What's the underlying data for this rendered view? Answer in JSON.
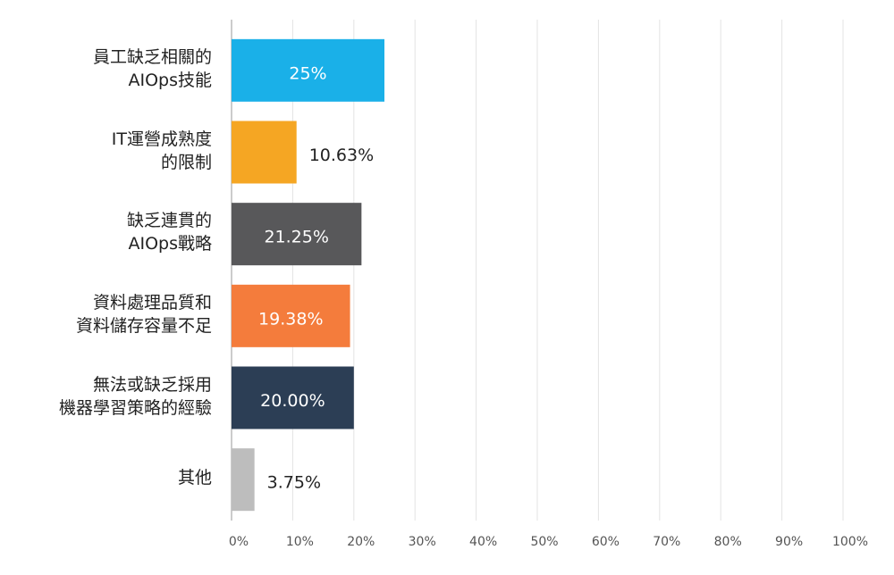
{
  "chart_data": {
    "type": "barh",
    "categories": [
      "員工缺乏相關的\nAIOps技能",
      "IT運營成熟度\n的限制",
      "缺乏連貫的\nAIOps戰略",
      "資料處理品質和\n資料儲存容量不足",
      "無法或缺乏採用\n機器學習策略的經驗",
      "其他"
    ],
    "values": [
      25,
      10.63,
      21.25,
      19.38,
      20.0,
      3.75
    ],
    "value_labels": [
      "25%",
      "10.63%",
      "21.25%",
      "19.38%",
      "20.00%",
      "3.75%"
    ],
    "colors": [
      "#1ab0e8",
      "#f5a623",
      "#58585a",
      "#f47c3c",
      "#2c3e55",
      "#bdbdbd"
    ],
    "xlim": [
      0,
      100
    ],
    "xticks": [
      {
        "value": 0,
        "label": "0%"
      },
      {
        "value": 10,
        "label": "10%"
      },
      {
        "value": 20,
        "label": "20%"
      },
      {
        "value": 30,
        "label": "30%"
      },
      {
        "value": 40,
        "label": "40%"
      },
      {
        "value": 50,
        "label": "50%"
      },
      {
        "value": 60,
        "label": "60%"
      },
      {
        "value": 70,
        "label": "70%"
      },
      {
        "value": 80,
        "label": "80%"
      },
      {
        "value": 90,
        "label": "90%"
      },
      {
        "value": 100,
        "label": "100%"
      }
    ],
    "grid": true
  }
}
